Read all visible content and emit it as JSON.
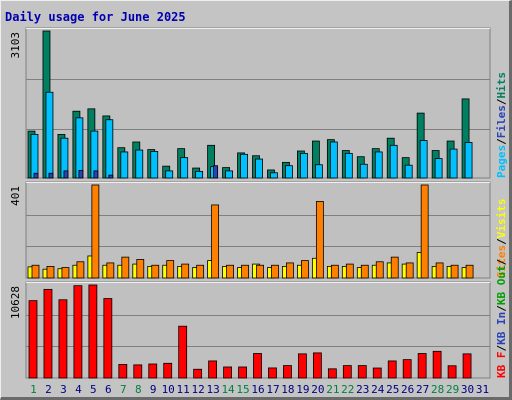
{
  "title": "Daily usage for June 2025",
  "colors": {
    "hits": "#008060",
    "files": "#00c0ff",
    "pages": "#2a44b8",
    "visits": "#ffff00",
    "sites": "#ff8000",
    "kbin": "#2a44b8",
    "kbout": "#00a000",
    "kbf": "#ff0000",
    "weekend": "#008040",
    "weekday": "#000080"
  },
  "days": [
    "1",
    "2",
    "3",
    "4",
    "5",
    "6",
    "7",
    "8",
    "9",
    "10",
    "11",
    "12",
    "13",
    "14",
    "15",
    "16",
    "17",
    "18",
    "19",
    "20",
    "21",
    "22",
    "23",
    "24",
    "25",
    "26",
    "27",
    "28",
    "29",
    "30",
    "31"
  ],
  "weekend_days": [
    1,
    7,
    8,
    14,
    15,
    21,
    22,
    28,
    29
  ],
  "chart_data": [
    {
      "type": "bar",
      "name": "hits-files-pages",
      "max_label": "3103",
      "legend": [
        "Pages",
        "/",
        "Files",
        "/",
        "Hits"
      ],
      "categories": [
        "1",
        "2",
        "3",
        "4",
        "5",
        "6",
        "7",
        "8",
        "9",
        "10",
        "11",
        "12",
        "13",
        "14",
        "15",
        "16",
        "17",
        "18",
        "19",
        "20",
        "21",
        "22",
        "23",
        "24",
        "25",
        "26",
        "27",
        "28",
        "29",
        "30",
        "31"
      ],
      "ylim": [
        0,
        3103
      ],
      "series": [
        {
          "name": "Hits",
          "values": [
            990,
            3103,
            920,
            1410,
            1460,
            1310,
            640,
            760,
            600,
            250,
            620,
            210,
            690,
            220,
            530,
            470,
            170,
            330,
            570,
            780,
            810,
            580,
            450,
            620,
            840,
            430,
            1370,
            580,
            780,
            1670,
            0
          ]
        },
        {
          "name": "Files",
          "values": [
            920,
            1810,
            840,
            1270,
            990,
            1230,
            550,
            590,
            560,
            150,
            430,
            140,
            240,
            150,
            500,
            400,
            110,
            260,
            520,
            280,
            760,
            520,
            290,
            550,
            690,
            270,
            790,
            410,
            610,
            750,
            0
          ]
        },
        {
          "name": "Pages",
          "values": [
            100,
            100,
            150,
            160,
            150,
            60,
            0,
            0,
            0,
            0,
            0,
            0,
            260,
            0,
            0,
            0,
            0,
            0,
            0,
            0,
            0,
            0,
            0,
            0,
            0,
            0,
            0,
            0,
            0,
            0,
            0
          ]
        }
      ]
    },
    {
      "type": "bar",
      "name": "visits-sites",
      "max_label": "401",
      "legend": [
        "Sites",
        "/",
        "Visits"
      ],
      "categories": [
        "1",
        "2",
        "3",
        "4",
        "5",
        "6",
        "7",
        "8",
        "9",
        "10",
        "11",
        "12",
        "13",
        "14",
        "15",
        "16",
        "17",
        "18",
        "19",
        "20",
        "21",
        "22",
        "23",
        "24",
        "25",
        "26",
        "27",
        "28",
        "29",
        "30",
        "31"
      ],
      "ylim": [
        0,
        401
      ],
      "series": [
        {
          "name": "Visits",
          "values": [
            48,
            38,
            40,
            55,
            95,
            55,
            55,
            60,
            50,
            55,
            50,
            45,
            75,
            50,
            45,
            60,
            45,
            50,
            55,
            85,
            50,
            50,
            45,
            55,
            65,
            60,
            110,
            50,
            50,
            45,
            0
          ]
        },
        {
          "name": "Sites",
          "values": [
            55,
            50,
            45,
            70,
            401,
            65,
            90,
            80,
            55,
            75,
            60,
            55,
            315,
            55,
            55,
            55,
            55,
            65,
            75,
            330,
            55,
            60,
            55,
            70,
            90,
            65,
            401,
            65,
            55,
            55,
            0
          ]
        }
      ]
    },
    {
      "type": "bar",
      "name": "kbytes",
      "max_label": "10628",
      "legend": [
        "KB F",
        "/",
        "KB In",
        "/",
        "KB Out",
        "/"
      ],
      "categories": [
        "1",
        "2",
        "3",
        "4",
        "5",
        "6",
        "7",
        "8",
        "9",
        "10",
        "11",
        "12",
        "13",
        "14",
        "15",
        "16",
        "17",
        "18",
        "19",
        "20",
        "21",
        "22",
        "23",
        "24",
        "25",
        "26",
        "27",
        "28",
        "29",
        "30",
        "31"
      ],
      "ylim": [
        0,
        10628
      ],
      "series": [
        {
          "name": "KB F",
          "values": [
            8840,
            10130,
            8940,
            10550,
            10628,
            9080,
            1550,
            1500,
            1600,
            1680,
            5920,
            1000,
            1950,
            1260,
            1260,
            2800,
            1150,
            1420,
            2760,
            2870,
            1050,
            1420,
            1420,
            1140,
            1950,
            2100,
            2800,
            3050,
            1400,
            2760,
            0
          ]
        }
      ]
    }
  ]
}
